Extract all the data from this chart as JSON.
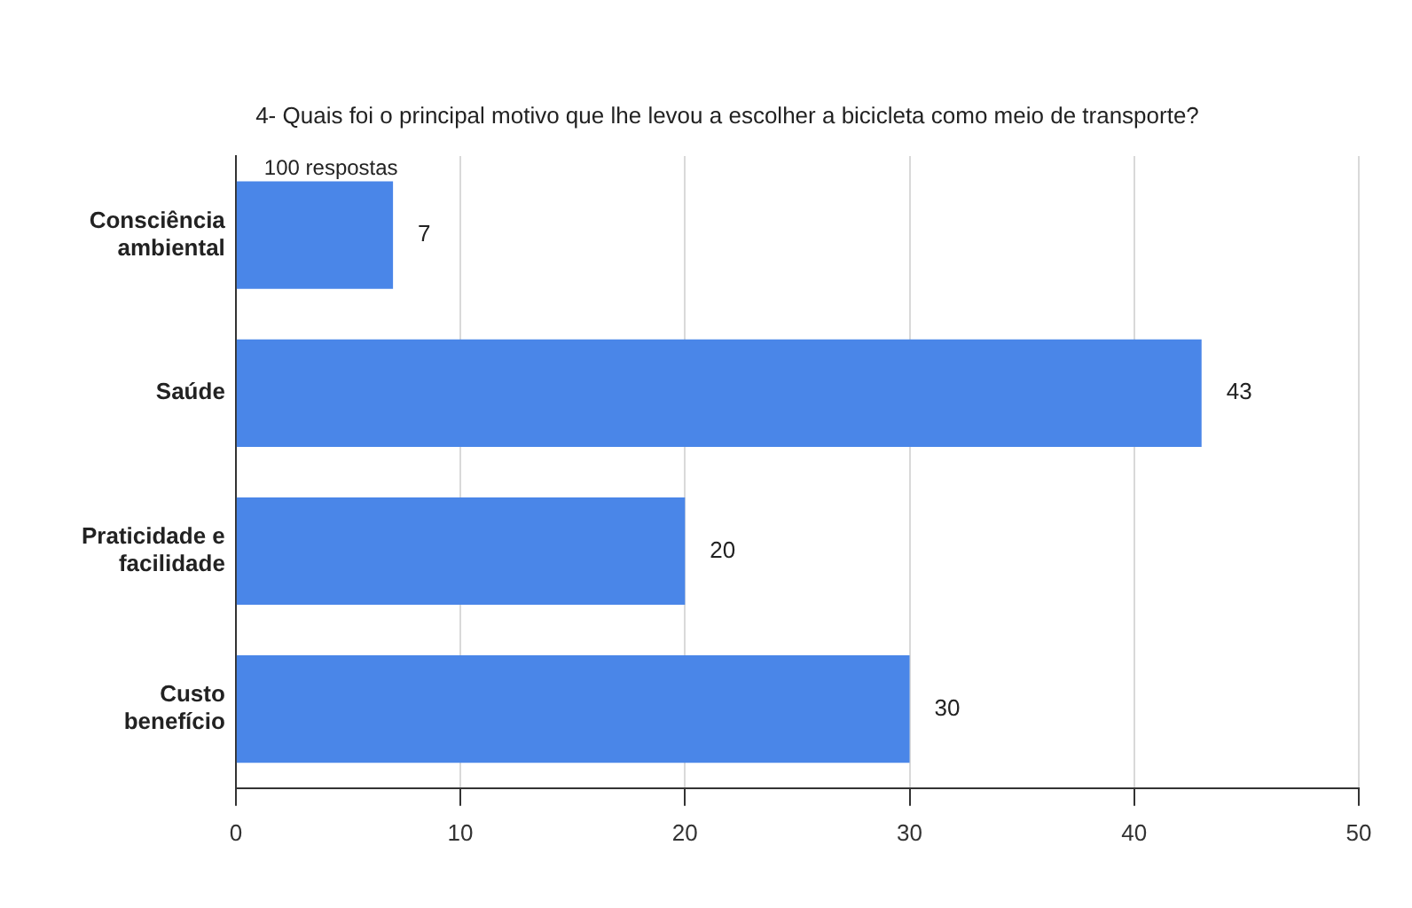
{
  "chart_data": {
    "type": "bar",
    "orientation": "horizontal",
    "title": "4- Quais foi o principal motivo que lhe levou a escolher a bicicleta como meio de transporte?",
    "subtitle": "100 respostas",
    "categories": [
      "Consciência ambiental",
      "Saúde",
      "Praticidade e facilidade",
      "Custo benefício"
    ],
    "values": [
      7,
      43,
      20,
      30
    ],
    "color": "#4a86e8",
    "xlim": [
      0,
      50
    ],
    "xticks": [
      0,
      10,
      20,
      30,
      40,
      50
    ],
    "grid": "x",
    "data_labels": true,
    "legend": false
  }
}
